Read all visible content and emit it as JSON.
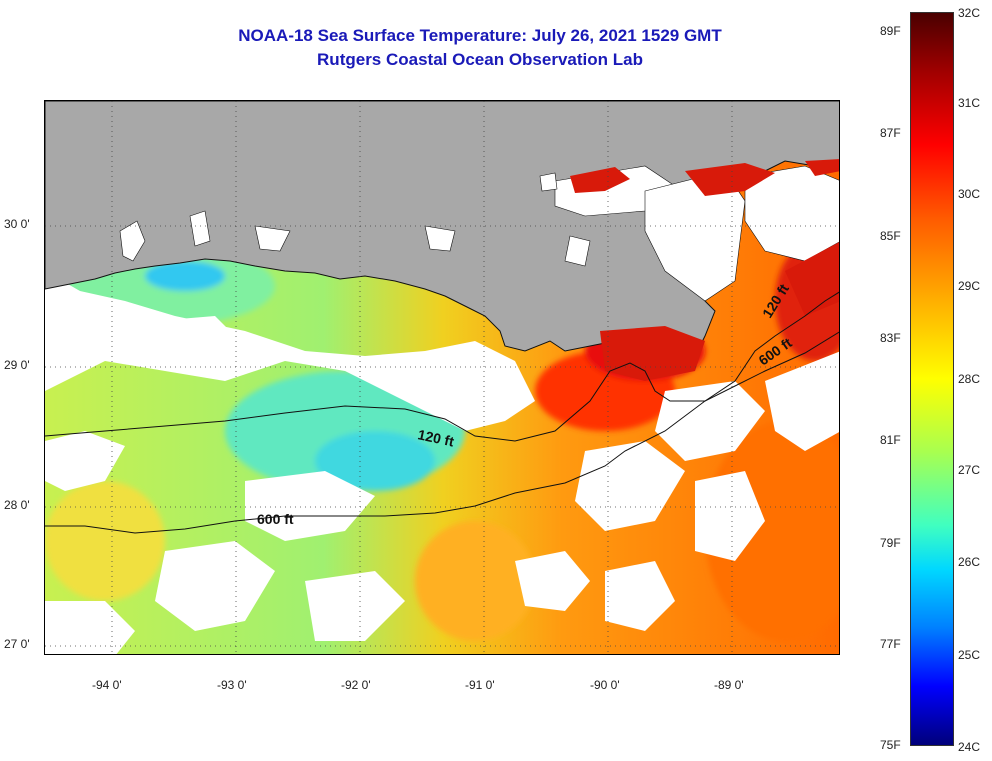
{
  "title": "NOAA-18 Sea Surface Temperature:  July 26, 2021 1529 GMT",
  "subtitle": "Rutgers Coastal Ocean Observation Lab",
  "longitude_labels": [
    "-94 0'",
    "-93 0'",
    "-92 0'",
    "-91 0'",
    "-90 0'",
    "-89 0'"
  ],
  "latitude_labels": [
    "30 0'",
    "29 0'",
    "28 0'",
    "27 0'"
  ],
  "contour_labels": {
    "c120_west": "120 ft",
    "c600_west": "600 ft",
    "c120_east": "120 ft",
    "c600_east": "600 ft"
  },
  "colorbar": {
    "fahrenheit": [
      "89F",
      "87F",
      "85F",
      "83F",
      "81F",
      "79F",
      "77F",
      "75F"
    ],
    "celsius": [
      "32C",
      "31C",
      "30C",
      "29C",
      "28C",
      "27C",
      "26C",
      "25C",
      "24C"
    ]
  },
  "colors": {
    "title": "#1a1ab8",
    "land": "#a8a8a8",
    "cloud": "#ffffff"
  }
}
